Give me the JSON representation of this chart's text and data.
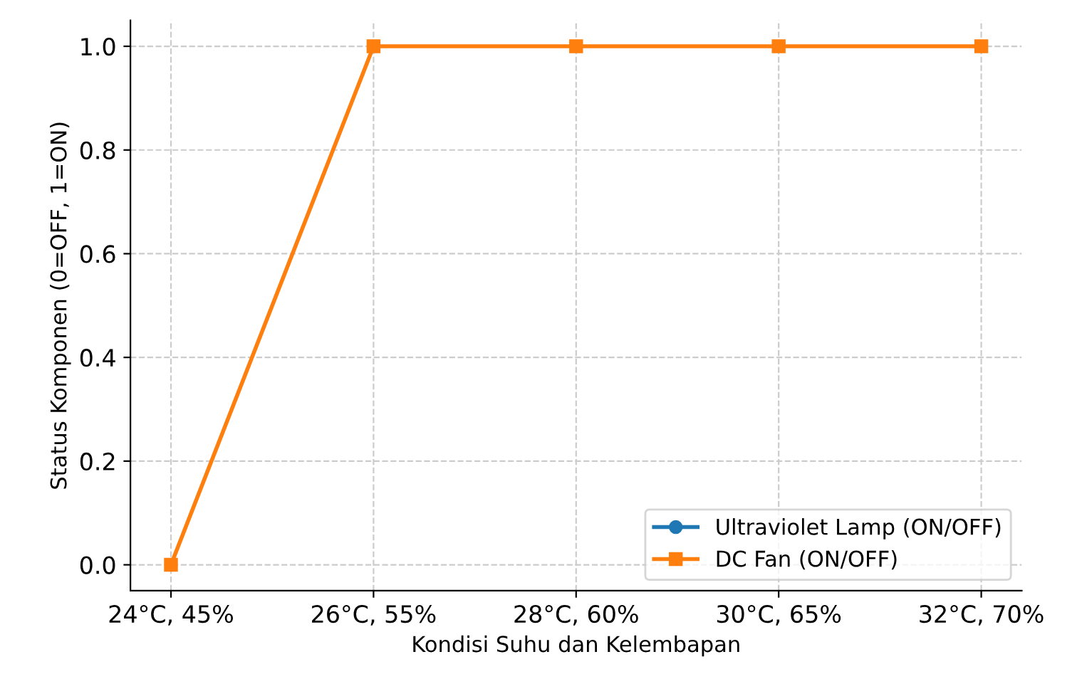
{
  "chart_data": {
    "type": "line",
    "xlabel": "Kondisi Suhu dan Kelembapan",
    "ylabel": "Status Komponen (0=OFF, 1=ON)",
    "categories": [
      "24°C, 45%",
      "26°C, 55%",
      "28°C, 60%",
      "30°C, 65%",
      "32°C, 70%"
    ],
    "series": [
      {
        "name": "Ultraviolet Lamp (ON/OFF)",
        "color": "#1f77b4",
        "marker": "circle",
        "values": [
          null,
          null,
          null,
          null,
          null
        ]
      },
      {
        "name": "DC Fan (ON/OFF)",
        "color": "#ff7f0e",
        "marker": "square",
        "values": [
          0,
          1,
          1,
          1,
          1
        ]
      }
    ],
    "ylim": [
      -0.05,
      1.05
    ],
    "yticks": [
      {
        "value": 0,
        "label": "0.0"
      },
      {
        "value": 0.2,
        "label": "0.2"
      },
      {
        "value": 0.4,
        "label": "0.4"
      },
      {
        "value": 0.6,
        "label": "0.6"
      },
      {
        "value": 0.8,
        "label": "0.8"
      },
      {
        "value": 1,
        "label": "1.0"
      }
    ],
    "grid": true,
    "legend": "bottom right",
    "line_style": "solid"
  }
}
